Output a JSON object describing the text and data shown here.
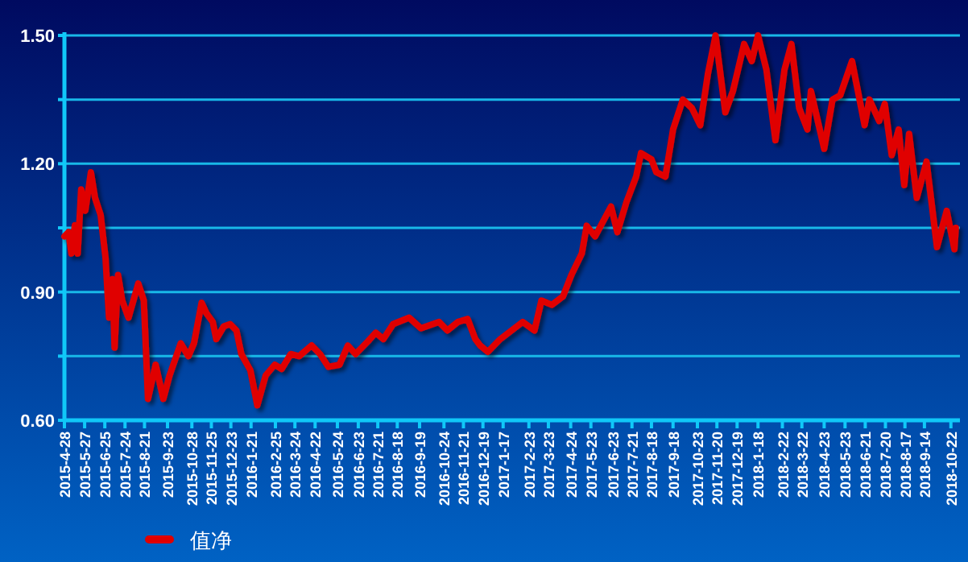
{
  "chart_data": {
    "type": "line",
    "series": [
      {
        "name": "值净",
        "color": "#e00000",
        "x": [
          "2015-04-28",
          "2015-05-04",
          "2015-05-08",
          "2015-05-13",
          "2015-05-17",
          "2015-05-22",
          "2015-05-28",
          "2015-06-05",
          "2015-06-11",
          "2015-06-19",
          "2015-06-26",
          "2015-07-01",
          "2015-07-06",
          "2015-07-09",
          "2015-07-14",
          "2015-07-20",
          "2015-07-29",
          "2015-08-12",
          "2015-08-20",
          "2015-08-26",
          "2015-09-06",
          "2015-09-17",
          "2015-09-26",
          "2015-10-12",
          "2015-10-23",
          "2015-10-31",
          "2015-11-11",
          "2015-11-18",
          "2015-11-27",
          "2015-12-02",
          "2015-12-13",
          "2015-12-22",
          "2015-12-31",
          "2016-01-07",
          "2016-01-20",
          "2016-01-30",
          "2016-02-11",
          "2016-02-24",
          "2016-03-05",
          "2016-03-18",
          "2016-03-30",
          "2016-04-17",
          "2016-04-29",
          "2016-05-11",
          "2016-05-27",
          "2016-06-08",
          "2016-06-19",
          "2016-07-07",
          "2016-07-18",
          "2016-07-29",
          "2016-08-12",
          "2016-09-04",
          "2016-09-21",
          "2016-10-17",
          "2016-10-29",
          "2016-11-13",
          "2016-11-27",
          "2016-12-08",
          "2016-12-15",
          "2016-12-26",
          "2017-01-13",
          "2017-02-14",
          "2017-03-03",
          "2017-03-13",
          "2017-03-28",
          "2017-04-13",
          "2017-04-25",
          "2017-05-10",
          "2017-05-17",
          "2017-05-29",
          "2017-06-21",
          "2017-06-30",
          "2017-07-13",
          "2017-07-27",
          "2017-08-03",
          "2017-08-18",
          "2017-08-25",
          "2017-09-07",
          "2017-09-18",
          "2017-10-02",
          "2017-10-15",
          "2017-10-27",
          "2017-11-07",
          "2017-11-18",
          "2017-12-02",
          "2017-12-13",
          "2017-12-29",
          "2018-01-09",
          "2018-01-18",
          "2018-01-30",
          "2018-02-12",
          "2018-02-25",
          "2018-03-07",
          "2018-03-18",
          "2018-03-30",
          "2018-04-04",
          "2018-04-23",
          "2018-05-05",
          "2018-05-16",
          "2018-06-02",
          "2018-06-20",
          "2018-06-27",
          "2018-07-11",
          "2018-07-19",
          "2018-07-29",
          "2018-08-08",
          "2018-08-16",
          "2018-08-23",
          "2018-09-03",
          "2018-09-17",
          "2018-10-02",
          "2018-10-16",
          "2018-10-27",
          "2018-10-29"
        ],
        "values": [
          1.03,
          1.04,
          0.99,
          1.056,
          0.99,
          1.14,
          1.09,
          1.18,
          1.12,
          1.08,
          0.98,
          0.84,
          0.93,
          0.77,
          0.94,
          0.88,
          0.84,
          0.92,
          0.88,
          0.65,
          0.73,
          0.65,
          0.705,
          0.78,
          0.75,
          0.78,
          0.875,
          0.85,
          0.83,
          0.79,
          0.82,
          0.825,
          0.81,
          0.755,
          0.717,
          0.635,
          0.705,
          0.73,
          0.72,
          0.755,
          0.75,
          0.775,
          0.755,
          0.725,
          0.73,
          0.775,
          0.755,
          0.785,
          0.805,
          0.79,
          0.825,
          0.84,
          0.815,
          0.83,
          0.81,
          0.83,
          0.837,
          0.79,
          0.775,
          0.76,
          0.79,
          0.83,
          0.81,
          0.88,
          0.87,
          0.89,
          0.94,
          0.99,
          1.055,
          1.03,
          1.1,
          1.04,
          1.11,
          1.17,
          1.225,
          1.21,
          1.18,
          1.17,
          1.28,
          1.35,
          1.33,
          1.29,
          1.41,
          1.5,
          1.32,
          1.37,
          1.48,
          1.44,
          1.5,
          1.42,
          1.255,
          1.42,
          1.48,
          1.33,
          1.28,
          1.37,
          1.235,
          1.35,
          1.36,
          1.44,
          1.29,
          1.35,
          1.3,
          1.34,
          1.22,
          1.28,
          1.15,
          1.27,
          1.12,
          1.205,
          1.005,
          1.09,
          1.0,
          1.05
        ]
      }
    ],
    "xlim": [
      "2015-04-28",
      "2018-11-04"
    ],
    "xticks": [
      {
        "value": "2015-04-28",
        "label": "2015-4-28"
      },
      {
        "value": "2015-05-27",
        "label": "2015-5-27"
      },
      {
        "value": "2015-06-25",
        "label": "2015-6-25"
      },
      {
        "value": "2015-07-24",
        "label": "2015-7-24"
      },
      {
        "value": "2015-08-21",
        "label": "2015-8-21"
      },
      {
        "value": "2015-09-23",
        "label": "2015-9-23"
      },
      {
        "value": "2015-10-28",
        "label": "2015-10-28"
      },
      {
        "value": "2015-11-25",
        "label": "2015-11-25"
      },
      {
        "value": "2015-12-23",
        "label": "2015-12-23"
      },
      {
        "value": "2016-01-21",
        "label": "2016-1-21"
      },
      {
        "value": "2016-02-25",
        "label": "2016-2-25"
      },
      {
        "value": "2016-03-24",
        "label": "2016-3-24"
      },
      {
        "value": "2016-04-22",
        "label": "2016-4-22"
      },
      {
        "value": "2016-05-24",
        "label": "2016-5-24"
      },
      {
        "value": "2016-06-23",
        "label": "2016-6-23"
      },
      {
        "value": "2016-07-21",
        "label": "2016-7-21"
      },
      {
        "value": "2016-08-18",
        "label": "2016-8-18"
      },
      {
        "value": "2016-09-19",
        "label": "2016-9-19"
      },
      {
        "value": "2016-10-24",
        "label": "2016-10-24"
      },
      {
        "value": "2016-11-21",
        "label": "2016-11-21"
      },
      {
        "value": "2016-12-19",
        "label": "2016-12-19"
      },
      {
        "value": "2017-01-17",
        "label": "2017-1-17"
      },
      {
        "value": "2017-02-23",
        "label": "2017-2-23"
      },
      {
        "value": "2017-03-23",
        "label": "2017-3-23"
      },
      {
        "value": "2017-04-24",
        "label": "2017-4-24"
      },
      {
        "value": "2017-05-23",
        "label": "2017-5-23"
      },
      {
        "value": "2017-06-23",
        "label": "2017-6-23"
      },
      {
        "value": "2017-07-21",
        "label": "2017-7-21"
      },
      {
        "value": "2017-08-18",
        "label": "2017-8-18"
      },
      {
        "value": "2017-09-18",
        "label": "2017-9-18"
      },
      {
        "value": "2017-10-23",
        "label": "2017-10-23"
      },
      {
        "value": "2017-11-20",
        "label": "2017-11-20"
      },
      {
        "value": "2017-12-19",
        "label": "2017-12-19"
      },
      {
        "value": "2018-01-18",
        "label": "2018-1-18"
      },
      {
        "value": "2018-02-22",
        "label": "2018-2-22"
      },
      {
        "value": "2018-03-22",
        "label": "2018-3-22"
      },
      {
        "value": "2018-04-23",
        "label": "2018-4-23"
      },
      {
        "value": "2018-05-23",
        "label": "2018-5-23"
      },
      {
        "value": "2018-06-21",
        "label": "2018-6-21"
      },
      {
        "value": "2018-07-20",
        "label": "2018-7-20"
      },
      {
        "value": "2018-08-17",
        "label": "2018-8-17"
      },
      {
        "value": "2018-09-14",
        "label": "2018-9-14"
      },
      {
        "value": "2018-10-22",
        "label": "2018-10-22"
      }
    ],
    "ylim": [
      0.6,
      1.5
    ],
    "yticks": [
      {
        "value": 0.6,
        "label": "0.60"
      },
      {
        "value": 0.75,
        "label": null
      },
      {
        "value": 0.9,
        "label": "0.90"
      },
      {
        "value": 1.05,
        "label": null
      },
      {
        "value": 1.2,
        "label": "1.20"
      },
      {
        "value": 1.35,
        "label": null
      },
      {
        "value": 1.5,
        "label": "1.50"
      }
    ],
    "grid": "y",
    "legend": "bottom left",
    "line_style": "solid"
  }
}
